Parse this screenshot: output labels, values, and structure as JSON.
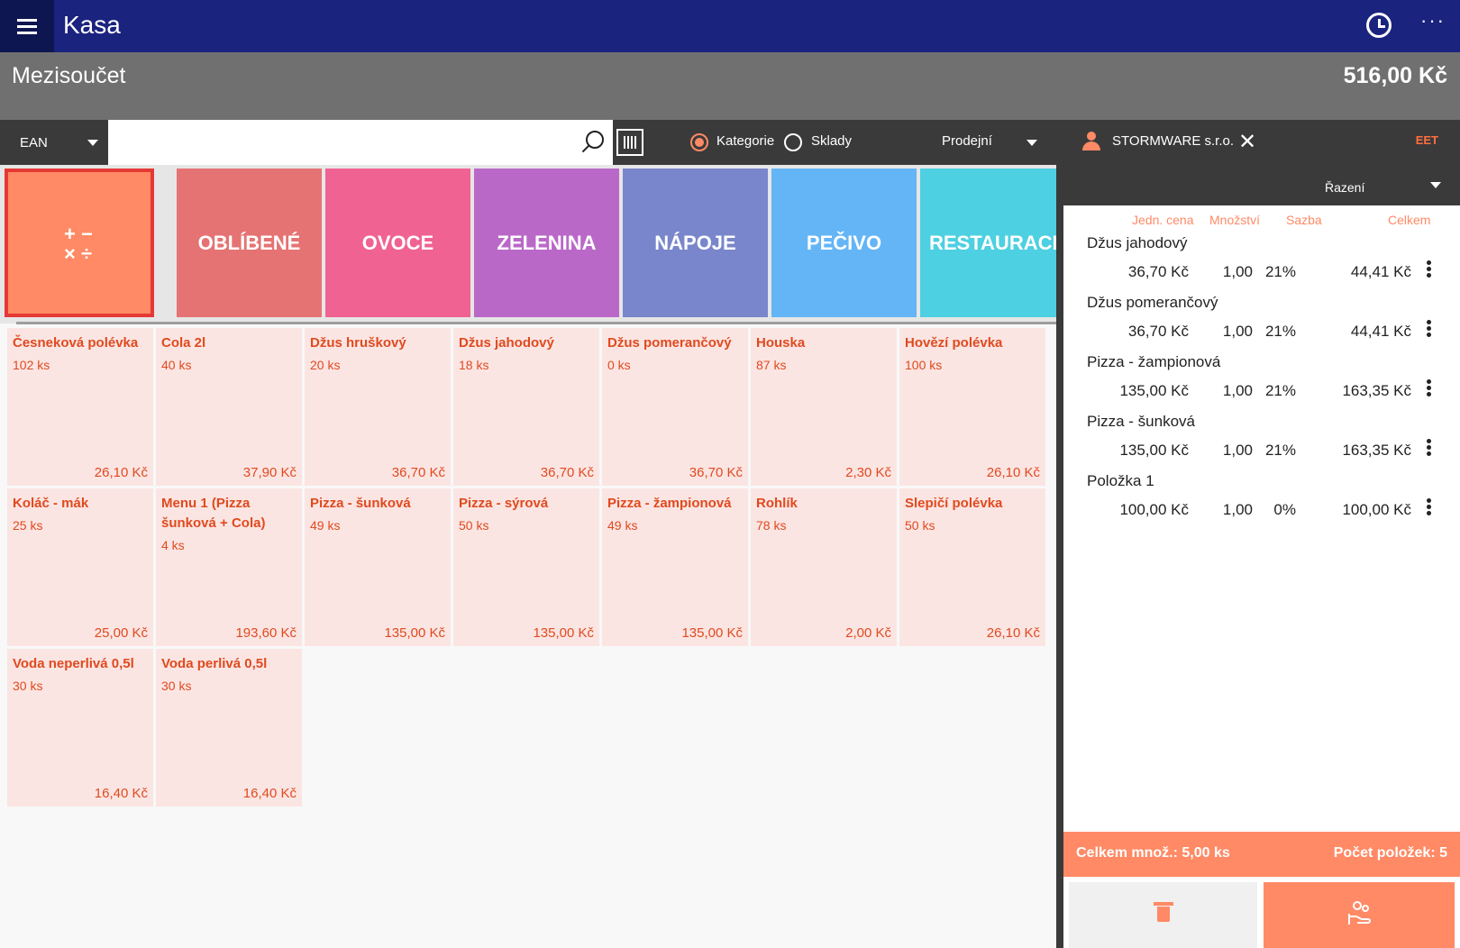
{
  "app": {
    "title": "Kasa"
  },
  "subtotal": {
    "label": "Mezisoučet",
    "value": "516,00 Kč"
  },
  "toolbar": {
    "search_mode": "EAN",
    "search_placeholder": "",
    "filter_options": [
      {
        "label": "Kategorie",
        "selected": true
      },
      {
        "label": "Sklady",
        "selected": false
      }
    ],
    "price_list": "Prodejní"
  },
  "customer": {
    "name": "STORMWARE s.r.o.",
    "eet": "EET"
  },
  "categories": [
    {
      "label": "OBLÍBENÉ",
      "color": "#e57373"
    },
    {
      "label": "OVOCE",
      "color": "#f06292"
    },
    {
      "label": "ZELENINA",
      "color": "#ba68c8"
    },
    {
      "label": "NÁPOJE",
      "color": "#7986cb"
    },
    {
      "label": "PEČIVO",
      "color": "#64b5f6"
    },
    {
      "label": "RESTAURACE",
      "color": "#4dd0e1"
    }
  ],
  "products": [
    {
      "name": "Česneková polévka",
      "stock": "102 ks",
      "price": "26,10 Kč"
    },
    {
      "name": "Cola 2l",
      "stock": "40 ks",
      "price": "37,90 Kč"
    },
    {
      "name": "Džus hruškový",
      "stock": "20 ks",
      "price": "36,70 Kč"
    },
    {
      "name": "Džus jahodový",
      "stock": "18 ks",
      "price": "36,70 Kč"
    },
    {
      "name": "Džus pomerančový",
      "stock": "0 ks",
      "price": "36,70 Kč"
    },
    {
      "name": "Houska",
      "stock": "87 ks",
      "price": "2,30 Kč"
    },
    {
      "name": "Hovězí polévka",
      "stock": "100 ks",
      "price": "26,10 Kč"
    },
    {
      "name": "Koláč - mák",
      "stock": "25 ks",
      "price": "25,00 Kč"
    },
    {
      "name": "Menu 1 (Pizza šunková + Cola)",
      "stock": "4 ks",
      "price": "193,60 Kč"
    },
    {
      "name": "Pizza - šunková",
      "stock": "49 ks",
      "price": "135,00 Kč"
    },
    {
      "name": "Pizza - sýrová",
      "stock": "50 ks",
      "price": "135,00 Kč"
    },
    {
      "name": "Pizza - žampionová",
      "stock": "49 ks",
      "price": "135,00 Kč"
    },
    {
      "name": "Rohlík",
      "stock": "78 ks",
      "price": "2,00 Kč"
    },
    {
      "name": "Slepičí polévka",
      "stock": "50 ks",
      "price": "26,10 Kč"
    },
    {
      "name": "Voda neperlivá 0,5l",
      "stock": "30 ks",
      "price": "16,40 Kč"
    },
    {
      "name": "Voda perlivá 0,5l",
      "stock": "30 ks",
      "price": "16,40 Kč"
    }
  ],
  "cart": {
    "sort_label": "Řazení",
    "headers": {
      "unit_price": "Jedn. cena",
      "quantity": "Množství",
      "rate": "Sazba",
      "total": "Celkem"
    },
    "items": [
      {
        "name": "Džus jahodový",
        "unit_price": "36,70 Kč",
        "quantity": "1,00",
        "rate": "21%",
        "total": "44,41 Kč"
      },
      {
        "name": "Džus pomerančový",
        "unit_price": "36,70 Kč",
        "quantity": "1,00",
        "rate": "21%",
        "total": "44,41 Kč"
      },
      {
        "name": "Pizza - žampionová",
        "unit_price": "135,00 Kč",
        "quantity": "1,00",
        "rate": "21%",
        "total": "163,35 Kč"
      },
      {
        "name": "Pizza - šunková",
        "unit_price": "135,00 Kč",
        "quantity": "1,00",
        "rate": "21%",
        "total": "163,35 Kč"
      },
      {
        "name": "Položka 1",
        "unit_price": "100,00 Kč",
        "quantity": "1,00",
        "rate": "0%",
        "total": "100,00 Kč"
      }
    ],
    "summary_qty": "Celkem množ.: 5,00 ks",
    "summary_count": "Počet položek: 5"
  }
}
